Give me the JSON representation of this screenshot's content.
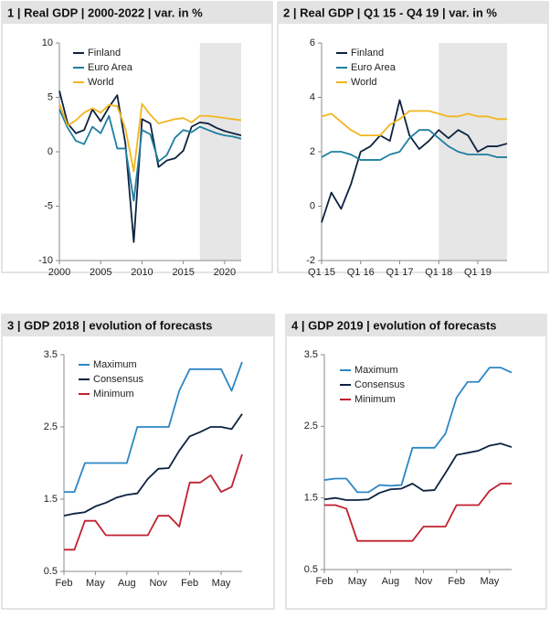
{
  "chart_data": [
    {
      "type": "line",
      "title": "1 | Real GDP | 2000-2022 | var. in %",
      "x": [
        2000,
        2001,
        2002,
        2003,
        2004,
        2005,
        2006,
        2007,
        2008,
        2009,
        2010,
        2011,
        2012,
        2013,
        2014,
        2015,
        2016,
        2017,
        2018,
        2019,
        2020,
        2021,
        2022
      ],
      "xlim": [
        2000,
        2022
      ],
      "xticks": [
        2000,
        2005,
        2010,
        2015,
        2020
      ],
      "ylim": [
        -10,
        10
      ],
      "yticks": [
        -10,
        -5,
        0,
        5,
        10
      ],
      "shaded_xlim": [
        2017,
        2022
      ],
      "shade_color": "#e6e6e6",
      "series": [
        {
          "name": "Finland",
          "color": "#0d2240",
          "values": [
            5.6,
            2.6,
            1.7,
            2.0,
            3.9,
            2.8,
            4.1,
            5.2,
            0.7,
            -8.3,
            3.0,
            2.6,
            -1.4,
            -0.8,
            -0.6,
            0.1,
            2.3,
            2.7,
            2.6,
            2.2,
            1.9,
            1.7,
            1.5
          ]
        },
        {
          "name": "Euro Area",
          "color": "#1f7fa0",
          "values": [
            3.9,
            2.2,
            1.0,
            0.7,
            2.3,
            1.7,
            3.3,
            0.3,
            0.3,
            -4.5,
            2.0,
            1.6,
            -0.9,
            -0.3,
            1.3,
            2.0,
            1.8,
            2.3,
            2.0,
            1.7,
            1.5,
            1.4,
            1.2
          ]
        },
        {
          "name": "World",
          "color": "#f2b61f",
          "values": [
            4.4,
            2.4,
            2.9,
            3.6,
            4.0,
            3.6,
            4.3,
            4.2,
            2.1,
            -1.8,
            4.4,
            3.4,
            2.6,
            2.8,
            3.0,
            3.1,
            2.7,
            3.3,
            3.3,
            3.2,
            3.1,
            3.0,
            2.9
          ]
        }
      ]
    },
    {
      "type": "line",
      "title": "2 | Real GDP | Q1 15 - Q4 19 | var. in %",
      "categories": [
        "Q1 15",
        null,
        null,
        null,
        "Q1 16",
        null,
        null,
        null,
        "Q1 17",
        null,
        null,
        null,
        "Q1 18",
        null,
        null,
        null,
        "Q1 19",
        null,
        null,
        null
      ],
      "ylim": [
        -2,
        6
      ],
      "yticks": [
        -2,
        0,
        2,
        4,
        6
      ],
      "shaded_categories": [
        12,
        19
      ],
      "shade_color": "#e6e6e6",
      "series": [
        {
          "name": "Finland",
          "color": "#0d2240",
          "values": [
            -0.6,
            0.5,
            -0.1,
            0.8,
            2.0,
            2.2,
            2.6,
            2.4,
            3.9,
            2.6,
            2.1,
            2.4,
            2.8,
            2.5,
            2.8,
            2.6,
            2.0,
            2.2,
            2.2,
            2.3
          ]
        },
        {
          "name": "Euro Area",
          "color": "#1f7fa0",
          "values": [
            1.8,
            2.0,
            2.0,
            1.9,
            1.7,
            1.7,
            1.7,
            1.9,
            2.0,
            2.5,
            2.8,
            2.8,
            2.5,
            2.2,
            2.0,
            1.9,
            1.9,
            1.9,
            1.8,
            1.8
          ]
        },
        {
          "name": "World",
          "color": "#f2b61f",
          "values": [
            3.3,
            3.4,
            3.1,
            2.8,
            2.6,
            2.6,
            2.6,
            3.0,
            3.2,
            3.5,
            3.5,
            3.5,
            3.4,
            3.3,
            3.3,
            3.4,
            3.3,
            3.3,
            3.2,
            3.2
          ]
        }
      ]
    },
    {
      "type": "line",
      "title": "3 | GDP 2018 | evolution of forecasts",
      "categories": [
        "Feb",
        null,
        null,
        "May",
        null,
        null,
        "Aug",
        null,
        null,
        "Nov",
        null,
        null,
        "Feb",
        null,
        null,
        "May",
        null,
        null
      ],
      "ylim": [
        0.5,
        3.5
      ],
      "yticks": [
        0.5,
        1.5,
        2.5,
        3.5
      ],
      "series": [
        {
          "name": "Maximum",
          "color": "#2d86c4",
          "values": [
            1.6,
            1.6,
            2.0,
            2.0,
            2.0,
            2.0,
            2.0,
            2.5,
            2.5,
            2.5,
            2.5,
            3.0,
            3.3,
            3.3,
            3.3,
            3.3,
            3.0,
            3.4
          ]
        },
        {
          "name": "Consensus",
          "color": "#0d2240",
          "values": [
            1.27,
            1.3,
            1.32,
            1.4,
            1.45,
            1.52,
            1.56,
            1.58,
            1.78,
            1.92,
            1.93,
            2.17,
            2.37,
            2.43,
            2.5,
            2.5,
            2.47,
            2.68
          ]
        },
        {
          "name": "Minimum",
          "color": "#c0202f",
          "values": [
            0.8,
            0.8,
            1.2,
            1.2,
            1.0,
            1.0,
            1.0,
            1.0,
            1.0,
            1.27,
            1.27,
            1.12,
            1.73,
            1.73,
            1.83,
            1.6,
            1.67,
            2.12
          ]
        }
      ]
    },
    {
      "type": "line",
      "title": "4 | GDP 2019 | evolution of forecasts",
      "categories": [
        "Feb",
        null,
        null,
        "May",
        null,
        null,
        "Aug",
        null,
        null,
        "Nov",
        null,
        null,
        "Feb",
        null,
        null,
        "May",
        null,
        null
      ],
      "ylim": [
        0.5,
        3.5
      ],
      "yticks": [
        0.5,
        1.5,
        2.5,
        3.5
      ],
      "series": [
        {
          "name": "Maximum",
          "color": "#2d86c4",
          "values": [
            1.75,
            1.77,
            1.77,
            1.58,
            1.58,
            1.68,
            1.67,
            1.68,
            2.2,
            2.2,
            2.2,
            2.4,
            2.9,
            3.12,
            3.12,
            3.32,
            3.32,
            3.25
          ]
        },
        {
          "name": "Consensus",
          "color": "#0d2240",
          "values": [
            1.48,
            1.5,
            1.47,
            1.47,
            1.48,
            1.57,
            1.62,
            1.63,
            1.7,
            1.6,
            1.61,
            1.85,
            2.1,
            2.13,
            2.16,
            2.23,
            2.26,
            2.21
          ]
        },
        {
          "name": "Minimum",
          "color": "#c0202f",
          "values": [
            1.4,
            1.4,
            1.35,
            0.9,
            0.9,
            0.9,
            0.9,
            0.9,
            0.9,
            1.1,
            1.1,
            1.1,
            1.4,
            1.4,
            1.4,
            1.6,
            1.7,
            1.7
          ]
        }
      ]
    }
  ]
}
